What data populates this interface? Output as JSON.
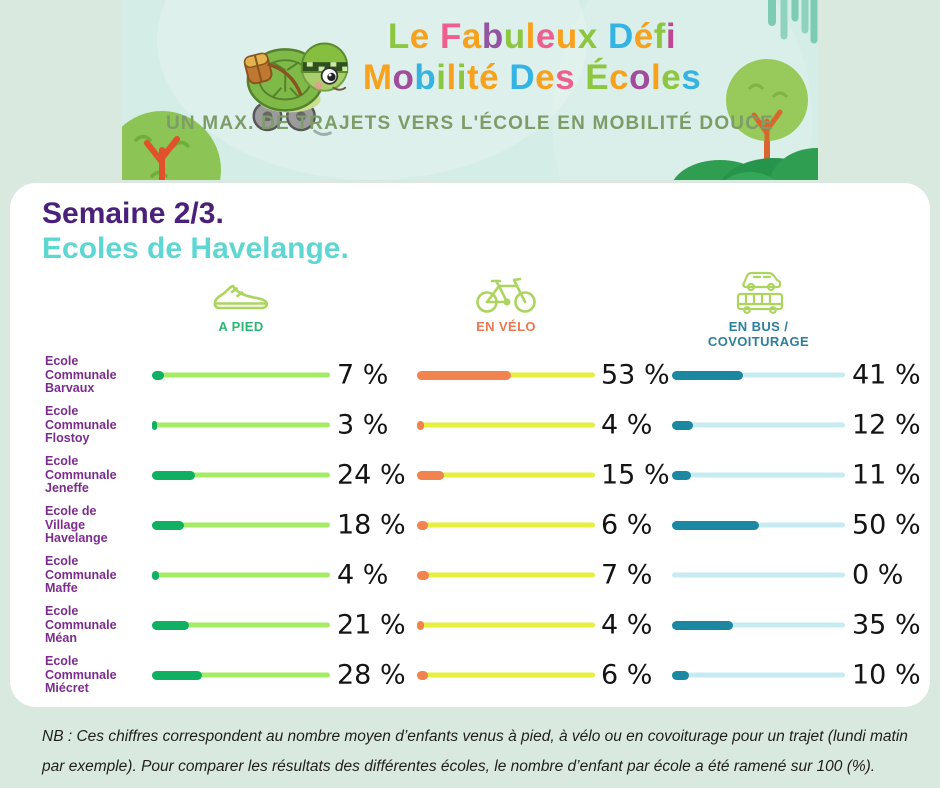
{
  "banner": {
    "title_line1": [
      [
        "L",
        "#8dc63f"
      ],
      [
        "e",
        "#f7a11c"
      ],
      [
        " ",
        ""
      ],
      [
        "F",
        "#ee5f8f"
      ],
      [
        "a",
        "#f7a11c"
      ],
      [
        "b",
        "#9455a0"
      ],
      [
        "u",
        "#8dc63f"
      ],
      [
        "l",
        "#f7a11c"
      ],
      [
        "e",
        "#ee5f8f"
      ],
      [
        "u",
        "#f7a11c"
      ],
      [
        "x",
        "#8dc63f"
      ],
      [
        " ",
        ""
      ],
      [
        "D",
        "#35b4e3"
      ],
      [
        "é",
        "#f7a11c"
      ],
      [
        "f",
        "#8dc63f"
      ],
      [
        "i",
        "#c0478f"
      ]
    ],
    "title_line2": [
      [
        "M",
        "#f7a11c"
      ],
      [
        "o",
        "#a04b9b"
      ],
      [
        "b",
        "#35b4e3"
      ],
      [
        "i",
        "#8dc63f"
      ],
      [
        "l",
        "#f7a11c"
      ],
      [
        "i",
        "#8dc63f"
      ],
      [
        "t",
        "#f7a11c"
      ],
      [
        "é",
        "#f7a11c"
      ],
      [
        " ",
        ""
      ],
      [
        "D",
        "#35b4e3"
      ],
      [
        "e",
        "#f7a11c"
      ],
      [
        "s",
        "#ee5f8f"
      ],
      [
        " ",
        ""
      ],
      [
        "É",
        "#8dc63f"
      ],
      [
        "c",
        "#f7a11c"
      ],
      [
        "o",
        "#a04b9b"
      ],
      [
        "l",
        "#f7a11c"
      ],
      [
        "e",
        "#8dc63f"
      ],
      [
        "s",
        "#35b4e3"
      ]
    ],
    "subtitle": "UN MAX. DE TRAJETS VERS L'ÉCOLE EN MOBILITÉ DOUCE"
  },
  "heading": {
    "line1": "Semaine 2/3.",
    "line2": "Ecoles de Havelange."
  },
  "columns": {
    "walk": {
      "label": "A PIED",
      "color": "#2bb673"
    },
    "bike": {
      "label": "EN VÉLO",
      "color": "#e87952"
    },
    "bus": {
      "label_line1": "EN BUS /",
      "label_line2": "COVOITURAGE",
      "color": "#2d7f9e"
    }
  },
  "icons": {
    "mascot": "turtle-mascot-icon",
    "walk": "sneaker-icon",
    "bike": "bicycle-icon",
    "bus": "bus-carpool-icon",
    "icon_stroke_color": "#abd55f"
  },
  "chart_data": {
    "type": "bar",
    "orientation": "horizontal",
    "title": "Semaine 2/3. Ecoles de Havelange.",
    "categories": [
      "Ecole Communale Barvaux",
      "Ecole Communale Flostoy",
      "Ecole Communale Jeneffe",
      "Ecole de Village Havelange",
      "Ecole Communale Maffe",
      "Ecole Communale Méan",
      "Ecole Communale Miécret"
    ],
    "category_label_lines": [
      [
        "Ecole",
        "Communale",
        "Barvaux"
      ],
      [
        "Ecole",
        "Communale",
        "Flostoy"
      ],
      [
        "Ecole",
        "Communale",
        "Jeneffe"
      ],
      [
        "Ecole de",
        "Village",
        "Havelange"
      ],
      [
        "Ecole",
        "Communale",
        "Maffe"
      ],
      [
        "Ecole",
        "Communale",
        "Méan"
      ],
      [
        "Ecole",
        "Communale",
        "Miécret"
      ]
    ],
    "series": [
      {
        "name": "A pied",
        "values": [
          7,
          3,
          24,
          18,
          4,
          21,
          28
        ],
        "fill": "#0fb062",
        "track": "#a5ec65"
      },
      {
        "name": "En vélo",
        "values": [
          53,
          4,
          15,
          6,
          7,
          4,
          6
        ],
        "fill": "#f0834e",
        "track": "#e6ef3b"
      },
      {
        "name": "En bus / covoiturage",
        "values": [
          41,
          12,
          11,
          50,
          0,
          35,
          10
        ],
        "fill": "#1b87a0",
        "track": "#c6ebf0"
      }
    ],
    "value_suffix": " %",
    "xlim": [
      0,
      100
    ],
    "grid": false,
    "legend_position": "column-headers"
  },
  "note": {
    "text": "NB : Ces chiffres correspondent au nombre moyen d’enfants venus à pied, à vélo ou en covoiturage pour un trajet (lundi matin par exemple). Pour comparer les résultats des différentes écoles, le nombre d’enfant par école a été ramené sur 100 (%)."
  }
}
